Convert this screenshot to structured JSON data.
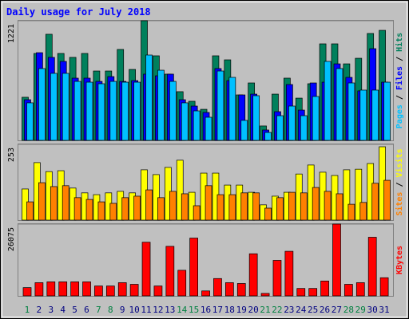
{
  "chart_data": [
    {
      "type": "bar",
      "title": "Daily usage for July 2018",
      "ylim": [
        0,
        1221
      ],
      "yticks": [
        1221
      ],
      "legend_separator": " / ",
      "series": [
        {
          "name": "Hits",
          "color": "#00805c",
          "values": [
            440,
            887,
            1083,
            887,
            847,
            887,
            708,
            708,
            928,
            724,
            1221,
            863,
            676,
            497,
            399,
            317,
            863,
            822,
            464,
            586,
            147,
            472,
            635,
            431,
            578,
            985,
            985,
            781,
            838,
            1091,
            1123
          ]
        },
        {
          "name": "Files",
          "color": "#0000ff",
          "values": [
            415,
            895,
            847,
            806,
            635,
            635,
            602,
            651,
            602,
            610,
            676,
            659,
            676,
            415,
            350,
            285,
            733,
            610,
            464,
            472,
            106,
            293,
            570,
            309,
            586,
            594,
            781,
            643,
            505,
            936,
            594
          ]
        },
        {
          "name": "Pages",
          "color": "#00c0ff",
          "values": [
            383,
            733,
            684,
            684,
            602,
            594,
            578,
            602,
            594,
            594,
            871,
            716,
            602,
            383,
            301,
            236,
            708,
            643,
            204,
            456,
            81,
            252,
            350,
            252,
            448,
            806,
            733,
            586,
            513,
            513,
            594
          ]
        }
      ]
    },
    {
      "type": "bar",
      "ylim": [
        0,
        253
      ],
      "yticks": [
        253
      ],
      "legend_separator": " / ",
      "series": [
        {
          "name": "Visits",
          "color": "#ffff00",
          "values": [
            104,
            192,
            162,
            165,
            107,
            91,
            85,
            91,
            96,
            91,
            168,
            152,
            176,
            200,
            93,
            157,
            157,
            117,
            117,
            93,
            51,
            80,
            93,
            154,
            184,
            160,
            149,
            168,
            170,
            189,
            245
          ]
        },
        {
          "name": "Sites",
          "color": "#ff8000",
          "values": [
            61,
            125,
            112,
            115,
            75,
            69,
            61,
            56,
            75,
            80,
            101,
            75,
            96,
            88,
            48,
            115,
            85,
            85,
            91,
            91,
            40,
            75,
            93,
            91,
            109,
            96,
            88,
            53,
            59,
            123,
            133
          ]
        }
      ]
    },
    {
      "type": "bar",
      "ylim": [
        0,
        26075
      ],
      "yticks": [
        26075
      ],
      "series": [
        {
          "name": "KBytes",
          "color": "#ff0000",
          "values": [
            3000,
            4800,
            5100,
            5100,
            5100,
            5100,
            3600,
            3600,
            4800,
            4200,
            19500,
            3600,
            18000,
            9300,
            21000,
            1800,
            6300,
            4800,
            4500,
            15300,
            900,
            12900,
            16200,
            2700,
            2700,
            5400,
            26075,
            4200,
            4800,
            21300,
            6600
          ]
        }
      ],
      "categories": [
        "1",
        "2",
        "3",
        "4",
        "5",
        "6",
        "7",
        "8",
        "9",
        "10",
        "11",
        "12",
        "13",
        "14",
        "15",
        "16",
        "17",
        "18",
        "19",
        "20",
        "21",
        "22",
        "23",
        "24",
        "25",
        "26",
        "27",
        "28",
        "29",
        "30",
        "31"
      ],
      "category_color": "#000080",
      "highlight_color": "#008040",
      "highlight": [
        0,
        6,
        7,
        13,
        14,
        20,
        21,
        27,
        28
      ]
    }
  ]
}
